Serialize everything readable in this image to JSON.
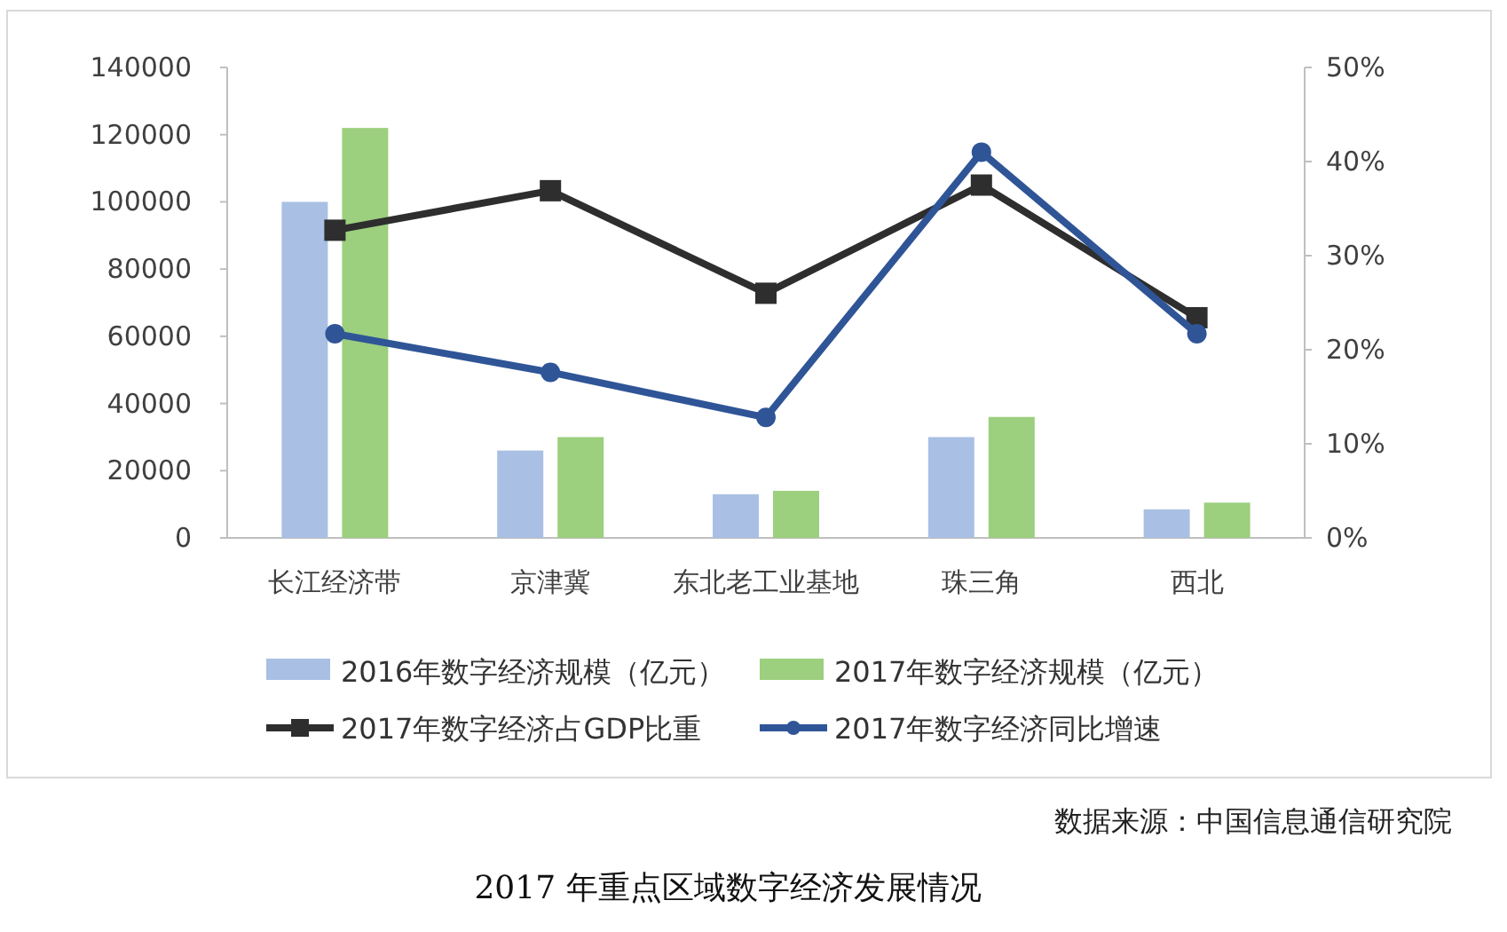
{
  "chart_data": {
    "type": "bar",
    "title": "2017 年重点区域数字经济发展情况",
    "categories": [
      "长江经济带",
      "京津冀",
      "东北老工业基地",
      "珠三角",
      "西北"
    ],
    "series": [
      {
        "name": "2016年数字经济规模（亿元）",
        "color": "#a9c0e4",
        "values": [
          100000,
          26000,
          13000,
          30000,
          8500
        ]
      },
      {
        "name": "2017年数字经济规模（亿元）",
        "color": "#9ccf7e",
        "values": [
          122000,
          30000,
          14000,
          36000,
          10500
        ]
      },
      {
        "name": "2017年数字经济占GDP比重",
        "type": "line",
        "axis": "y2",
        "color": "#2e2e2e",
        "marker": "square",
        "values": [
          32.7,
          36.9,
          26.0,
          37.5,
          23.4
        ]
      },
      {
        "name": "2017年数字经济同比增速",
        "type": "line",
        "axis": "y2",
        "color": "#2f5597",
        "marker": "circle",
        "values": [
          21.7,
          17.6,
          12.8,
          41.0,
          21.7
        ]
      }
    ],
    "ylim": [
      0,
      140000
    ],
    "yticks": [
      0,
      20000,
      40000,
      60000,
      80000,
      100000,
      120000,
      140000
    ],
    "y2lim": [
      0,
      50
    ],
    "y2ticks": [
      {
        "value": 0,
        "label": "0%"
      },
      {
        "value": 10,
        "label": "10%"
      },
      {
        "value": 20,
        "label": "20%"
      },
      {
        "value": 30,
        "label": "30%"
      },
      {
        "value": 40,
        "label": "40%"
      },
      {
        "value": 50,
        "label": "50%"
      }
    ],
    "legend": "bottom",
    "grid": false,
    "annotations": [
      "数据来源：中国信息通信研究院"
    ]
  }
}
